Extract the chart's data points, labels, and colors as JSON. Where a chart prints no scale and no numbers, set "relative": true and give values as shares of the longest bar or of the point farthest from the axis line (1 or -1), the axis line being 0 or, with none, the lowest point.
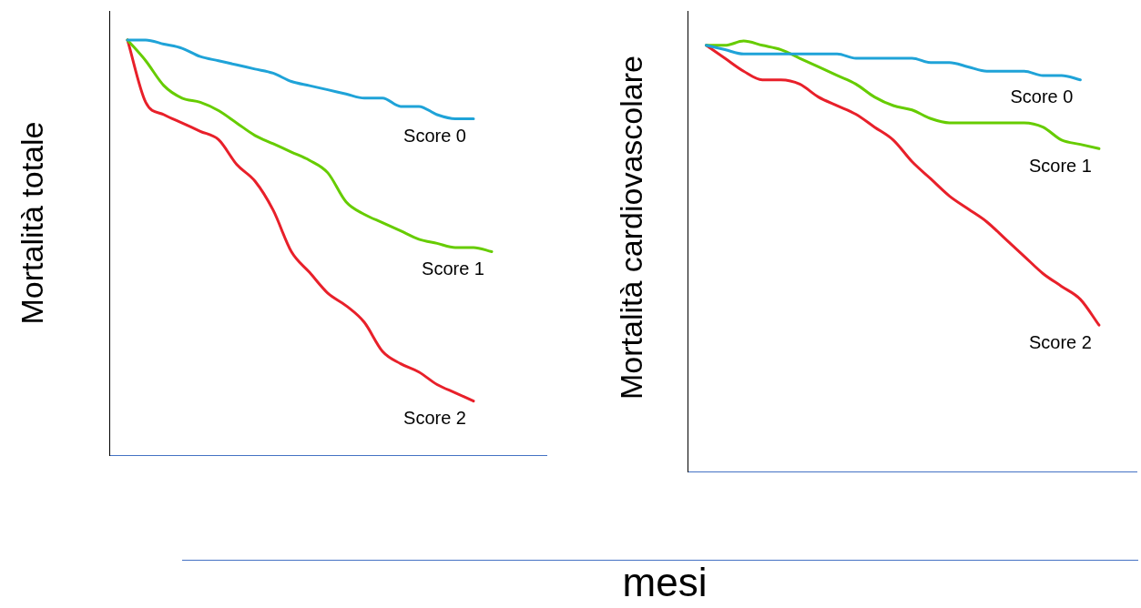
{
  "chart_data": [
    {
      "type": "line",
      "relative": true,
      "tick_labels": false,
      "ylabel": "Mortalità totale",
      "xlabel": "mesi",
      "categories": [
        null,
        null,
        null,
        null,
        null,
        null,
        null,
        null,
        null,
        null,
        null,
        null,
        null,
        null,
        null,
        null,
        null,
        null,
        null,
        null,
        null,
        null,
        null,
        null,
        null
      ],
      "series": [
        {
          "name": "Score 0",
          "color": "#1fa3d8",
          "values": [
            null,
            1.0,
            1.0,
            0.99,
            0.98,
            0.96,
            0.95,
            0.94,
            0.93,
            0.92,
            0.9,
            0.89,
            0.88,
            0.87,
            0.86,
            0.86,
            0.84,
            0.84,
            0.82,
            0.81,
            0.81,
            null,
            null,
            null,
            null
          ]
        },
        {
          "name": "Score 1",
          "color": "#66cc00",
          "values": [
            null,
            1.0,
            0.95,
            0.89,
            0.86,
            0.85,
            0.83,
            0.8,
            0.77,
            0.75,
            0.73,
            0.71,
            0.68,
            0.61,
            0.58,
            0.56,
            0.54,
            0.52,
            0.51,
            0.5,
            0.5,
            0.49,
            null,
            null,
            null
          ]
        },
        {
          "name": "Score 2",
          "color": "#e8202a",
          "values": [
            null,
            1.0,
            0.85,
            0.82,
            0.8,
            0.78,
            0.76,
            0.7,
            0.66,
            0.59,
            0.49,
            0.44,
            0.39,
            0.36,
            0.32,
            0.25,
            0.22,
            0.2,
            0.17,
            0.15,
            0.13,
            null,
            null,
            null,
            null
          ]
        }
      ]
    },
    {
      "type": "line",
      "relative": true,
      "tick_labels": false,
      "ylabel": "Mortalità cardiovascolare",
      "categories": [
        null,
        null,
        null,
        null,
        null,
        null,
        null,
        null,
        null,
        null,
        null,
        null,
        null,
        null,
        null,
        null,
        null,
        null,
        null,
        null,
        null,
        null,
        null,
        null,
        null
      ],
      "series": [
        {
          "name": "Score 0",
          "color": "#1fa3d8",
          "values": [
            null,
            0.99,
            0.98,
            0.97,
            0.97,
            0.97,
            0.97,
            0.97,
            0.97,
            0.96,
            0.96,
            0.96,
            0.96,
            0.95,
            0.95,
            0.94,
            0.93,
            0.93,
            0.93,
            0.92,
            0.92,
            0.91,
            null,
            null,
            null
          ]
        },
        {
          "name": "Score 1",
          "color": "#66cc00",
          "values": [
            null,
            0.99,
            0.99,
            1.0,
            0.99,
            0.98,
            0.96,
            0.94,
            0.92,
            0.9,
            0.87,
            0.85,
            0.84,
            0.82,
            0.81,
            0.81,
            0.81,
            0.81,
            0.81,
            0.8,
            0.77,
            0.76,
            0.75,
            null,
            null
          ]
        },
        {
          "name": "Score 2",
          "color": "#e8202a",
          "values": [
            null,
            0.99,
            0.96,
            0.93,
            0.91,
            0.91,
            0.9,
            0.87,
            0.85,
            0.83,
            0.8,
            0.77,
            0.72,
            0.68,
            0.64,
            0.61,
            0.58,
            0.54,
            0.5,
            0.46,
            0.43,
            0.4,
            0.34,
            null,
            null
          ]
        }
      ]
    }
  ]
}
